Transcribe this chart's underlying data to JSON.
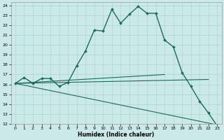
{
  "xlabel": "Humidex (Indice chaleur)",
  "xlim": [
    -0.5,
    23.5
  ],
  "ylim": [
    12,
    24.3
  ],
  "yticks": [
    12,
    13,
    14,
    15,
    16,
    17,
    18,
    19,
    20,
    21,
    22,
    23,
    24
  ],
  "xticks": [
    0,
    1,
    2,
    3,
    4,
    5,
    6,
    7,
    8,
    9,
    10,
    11,
    12,
    13,
    14,
    15,
    16,
    17,
    18,
    19,
    20,
    21,
    22,
    23
  ],
  "background_color": "#cce9e9",
  "line_color": "#1a6b5a",
  "grid_color": "#aad4d4",
  "main_line": {
    "x": [
      0,
      1,
      2,
      3,
      4,
      5,
      6,
      7,
      8,
      9,
      10,
      11,
      12,
      13,
      14,
      15,
      16,
      17,
      18,
      19,
      20,
      21,
      22,
      23
    ],
    "y": [
      16.1,
      16.7,
      16.1,
      16.6,
      16.6,
      15.8,
      16.2,
      17.9,
      19.4,
      21.5,
      21.4,
      23.6,
      22.2,
      23.1,
      23.9,
      23.2,
      23.2,
      20.5,
      19.8,
      17.2,
      15.8,
      14.3,
      13.1,
      11.8
    ]
  },
  "flat_line1": {
    "x": [
      0,
      17
    ],
    "y": [
      16.1,
      17.0
    ]
  },
  "flat_line2": {
    "x": [
      0,
      22
    ],
    "y": [
      16.1,
      16.5
    ]
  },
  "diag_line": {
    "x": [
      0,
      23
    ],
    "y": [
      16.1,
      11.9
    ]
  }
}
